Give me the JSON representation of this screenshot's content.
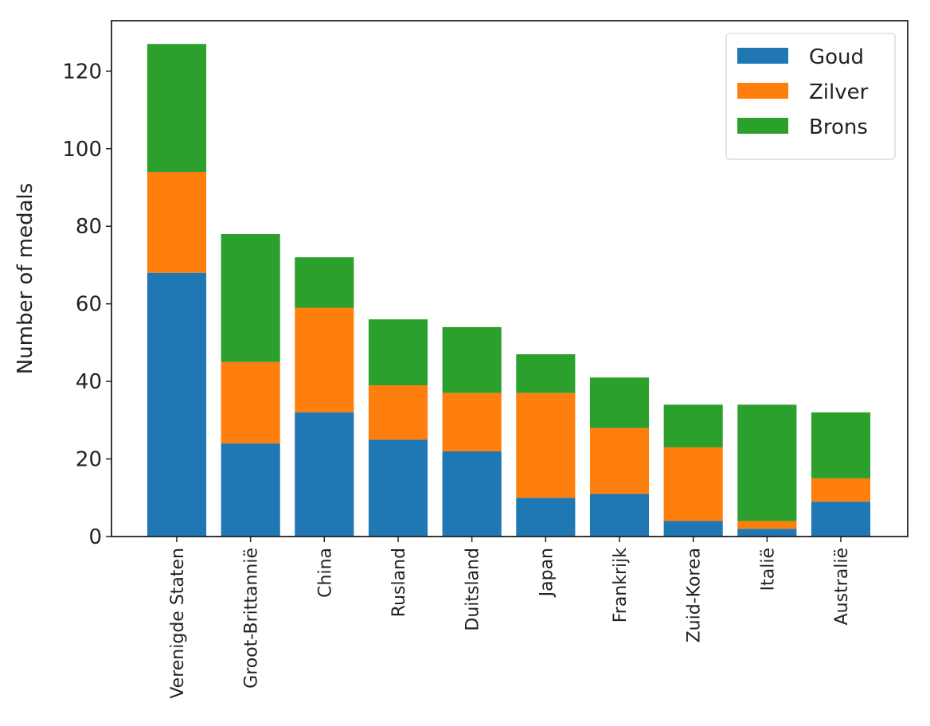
{
  "chart_data": {
    "type": "bar",
    "stacked": true,
    "y_label": "Number of medals",
    "categories": [
      "Verenigde Staten",
      "Groot-Brittannië",
      "China",
      "Rusland",
      "Duitsland",
      "Japan",
      "Frankrijk",
      "Zuid-Korea",
      "Italië",
      "Australië"
    ],
    "series": [
      {
        "name": "Goud",
        "color": "#1f77b4",
        "values": [
          68,
          24,
          32,
          25,
          22,
          10,
          11,
          4,
          2,
          9
        ]
      },
      {
        "name": "Zilver",
        "color": "#ff7f0e",
        "values": [
          26,
          21,
          27,
          14,
          15,
          27,
          17,
          19,
          2,
          6
        ]
      },
      {
        "name": "Brons",
        "color": "#2ca02c",
        "values": [
          33,
          33,
          13,
          17,
          17,
          10,
          13,
          11,
          30,
          17
        ]
      }
    ],
    "ylim": [
      0,
      133
    ],
    "yticks": [
      0,
      20,
      40,
      60,
      80,
      100,
      120
    ],
    "legend": "upper right"
  }
}
